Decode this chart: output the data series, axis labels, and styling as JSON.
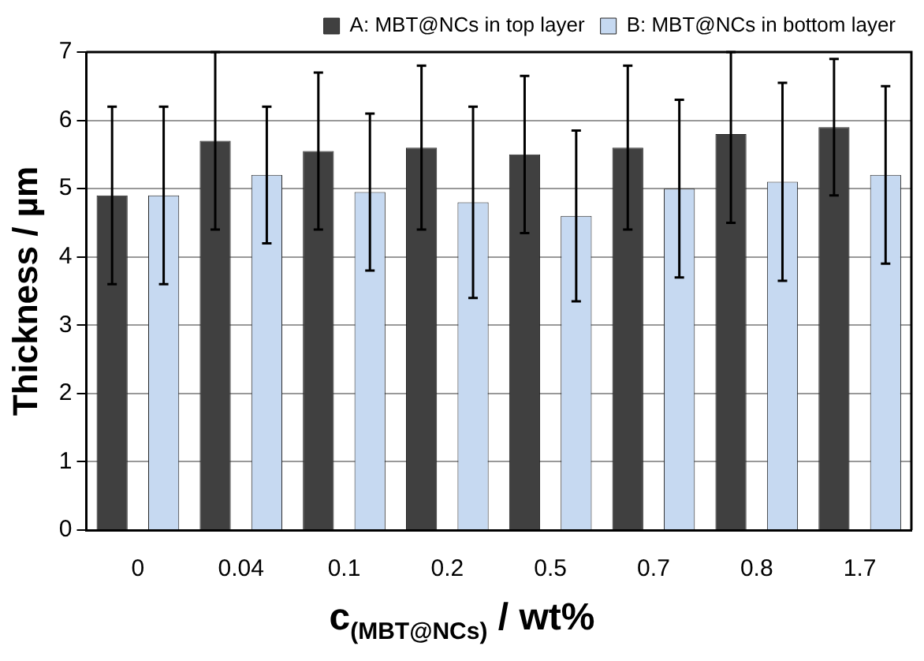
{
  "chart_data": {
    "type": "bar",
    "xlabel": "c$_{(MBT@NCs)}$ / wt%",
    "ylabel": "Thickness / µm",
    "categories": [
      "0",
      "0.04",
      "0.1",
      "0.2",
      "0.5",
      "0.7",
      "0.8",
      "1.7"
    ],
    "series": [
      {
        "name": "A: MBT@NCs in top layer",
        "color": "#404040",
        "values": [
          4.9,
          5.7,
          5.55,
          5.6,
          5.5,
          5.6,
          5.8,
          5.9
        ],
        "errors": [
          1.3,
          1.3,
          1.15,
          1.2,
          1.15,
          1.2,
          [
            4.5,
            7
          ],
          1.0
        ]
      },
      {
        "name": "B: MBT@NCs in bottom layer",
        "color": "#c6d9f1",
        "values": [
          4.9,
          5.2,
          4.95,
          4.8,
          4.6,
          5.0,
          5.1,
          5.2
        ],
        "errors": [
          1.3,
          1.0,
          1.15,
          1.4,
          1.25,
          1.3,
          1.45,
          1.3
        ]
      }
    ],
    "ylim": [
      0,
      7
    ],
    "yticks": [
      0,
      1,
      2,
      3,
      4,
      5,
      6,
      7
    ],
    "grid": "y",
    "legend": "top"
  }
}
